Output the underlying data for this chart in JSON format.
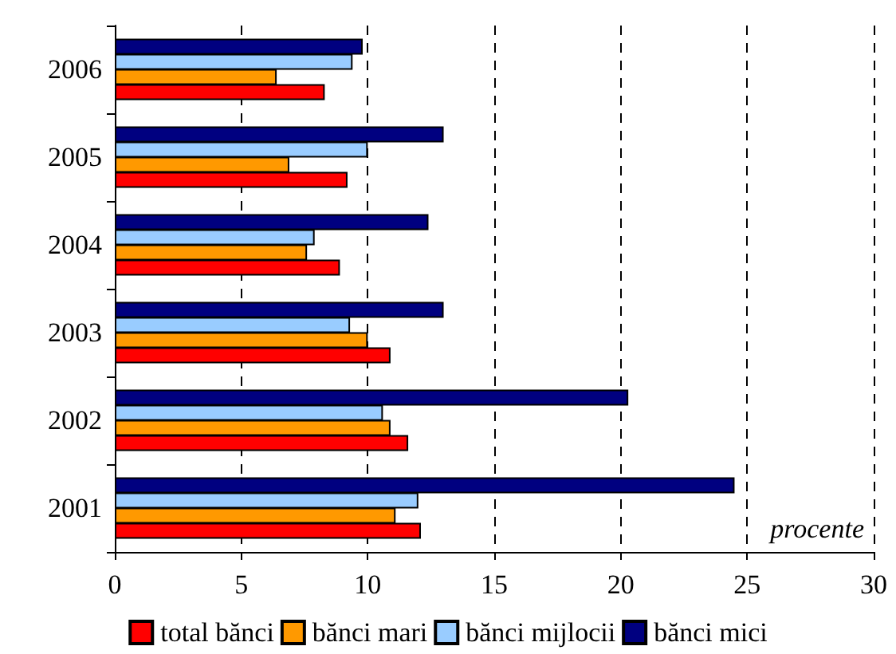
{
  "chart_data": {
    "type": "bar",
    "orientation": "horizontal",
    "categories": [
      "2006",
      "2005",
      "2004",
      "2003",
      "2002",
      "2001"
    ],
    "series": [
      {
        "name": "total bănci",
        "color": "#ff0000",
        "values": [
          8.3,
          9.2,
          8.9,
          10.9,
          11.6,
          12.1
        ]
      },
      {
        "name": "bănci mari",
        "color": "#ff9900",
        "values": [
          6.4,
          6.9,
          7.6,
          10.0,
          10.9,
          11.1
        ]
      },
      {
        "name": "bănci mijlocii",
        "color": "#99ccff",
        "values": [
          9.4,
          10.0,
          7.9,
          9.3,
          10.6,
          12.0
        ]
      },
      {
        "name": "bănci mici",
        "color": "#000080",
        "values": [
          9.8,
          13.0,
          12.4,
          13.0,
          20.3,
          24.5
        ]
      }
    ],
    "xlim": [
      0,
      30
    ],
    "xticks": [
      0,
      5,
      10,
      15,
      20,
      25,
      30
    ],
    "grid": "x",
    "legend": "bottom",
    "annotations": [
      "procente"
    ]
  }
}
